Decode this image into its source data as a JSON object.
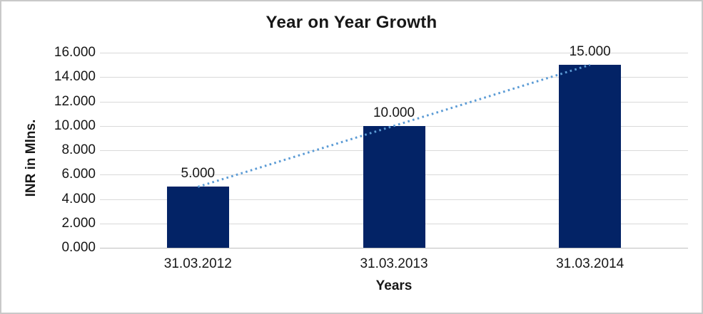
{
  "chart_data": {
    "type": "bar",
    "title": "Year on Year Growth",
    "xlabel": "Years",
    "ylabel": "INR in Mlns.",
    "categories": [
      "31.03.2012",
      "31.03.2013",
      "31.03.2014"
    ],
    "values": [
      5000,
      10000,
      15000
    ],
    "value_labels": [
      "5.000",
      "10.000",
      "15.000"
    ],
    "y_ticks": [
      "16.000",
      "14.000",
      "12.000",
      "10.000",
      "8.000",
      "6.000",
      "4.000",
      "2.000",
      "0.000"
    ],
    "ylim": [
      0,
      16000
    ],
    "grid": true,
    "legend": "none",
    "bar_color": "#032366",
    "gridline_color": "#d9d9d9",
    "trendline": {
      "type": "linear",
      "style": "dotted",
      "color": "#5b9bd5",
      "from_value": 5000,
      "to_value": 15000
    }
  }
}
